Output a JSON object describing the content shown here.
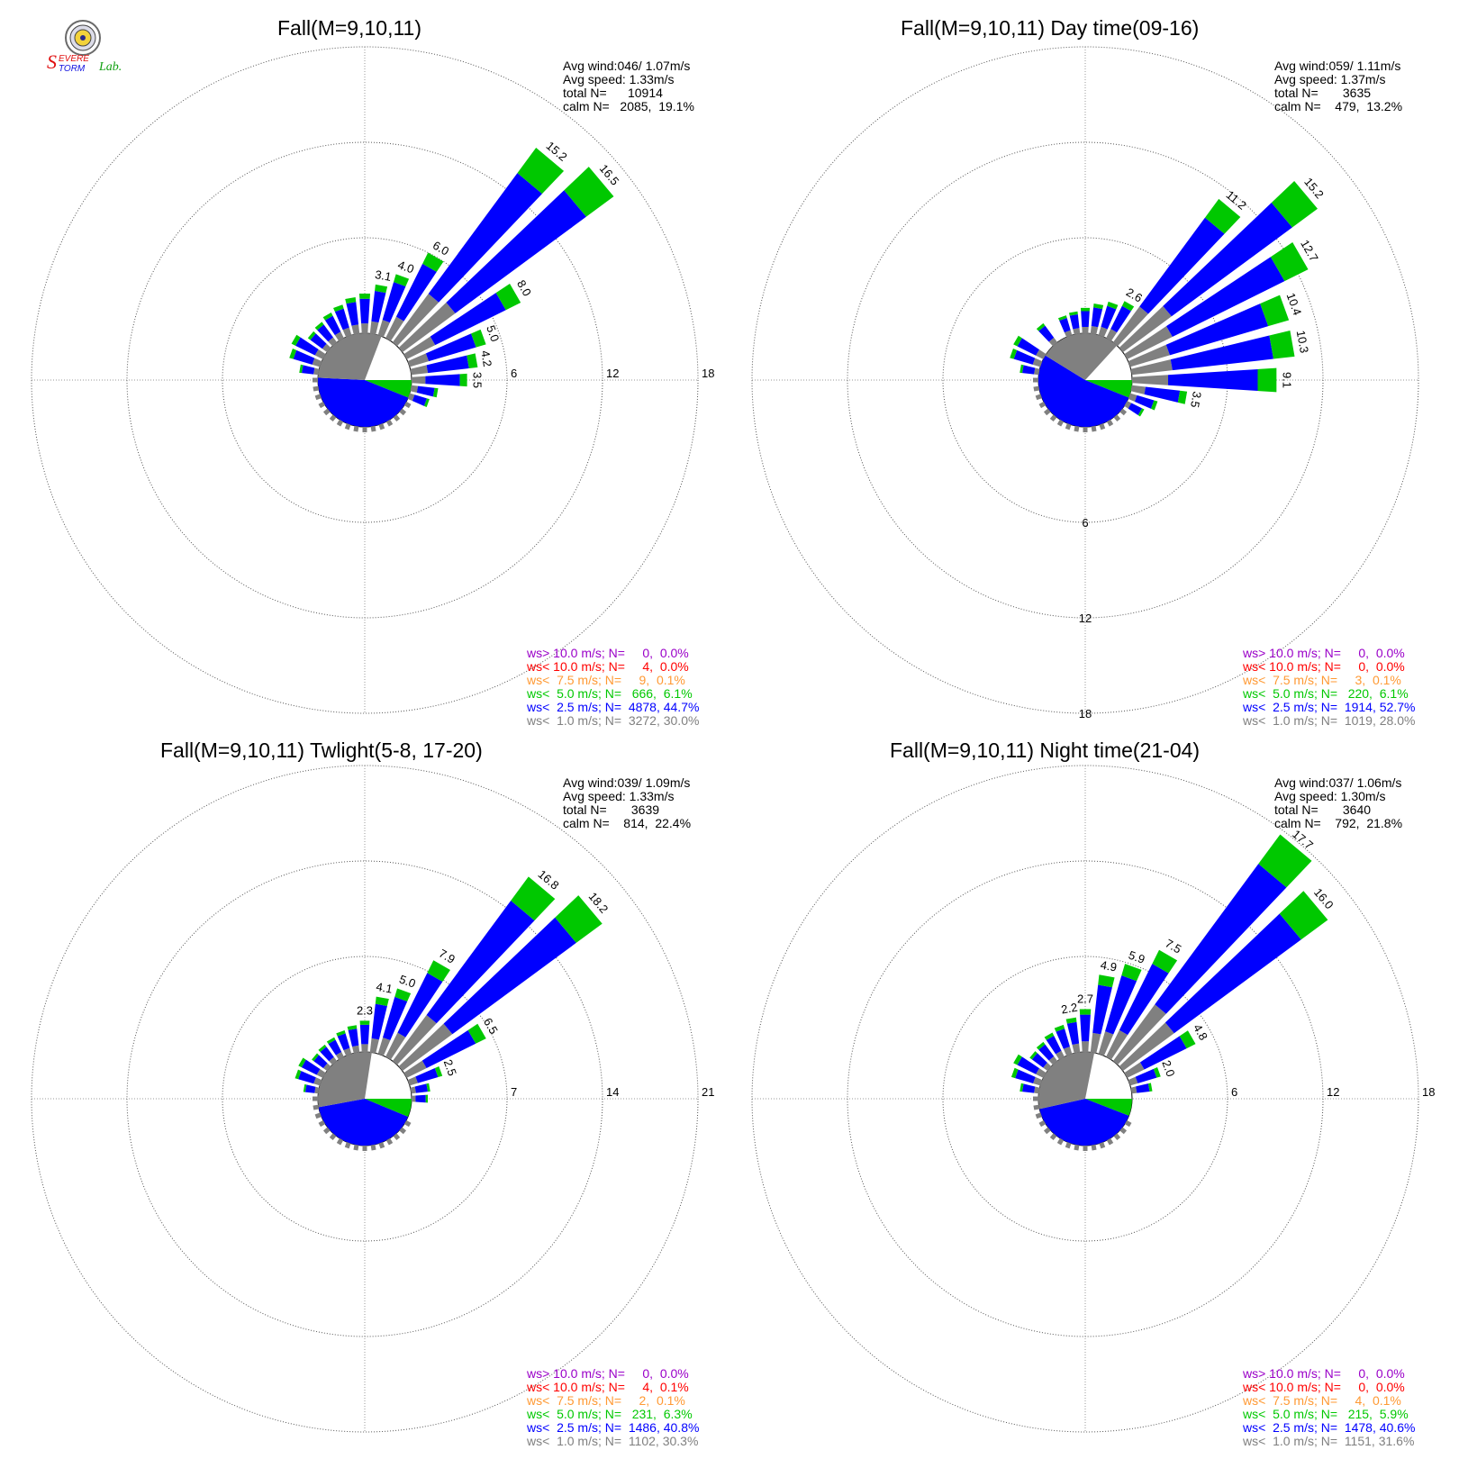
{
  "logo": {
    "text_s": "S",
    "text_evere": "EVERE",
    "text_torm": "TORM",
    "text_lab": "Lab.",
    "colors": {
      "s": "#e01010",
      "evere": "#e01010",
      "torm": "#1010e0",
      "lab": "#10a010"
    }
  },
  "colors": {
    "gt10": "#9a00c8",
    "lt10": "#ff0000",
    "lt7_5": "#ff9933",
    "lt5": "#00c800",
    "lt2_5": "#0000ff",
    "lt1": "#808080",
    "grid": "#999999"
  },
  "chart_data": [
    {
      "type": "windrose",
      "title": "Fall(M=9,10,11)",
      "rings": [
        "6",
        "12",
        "18"
      ],
      "rmax": 18,
      "stats": [
        "Avg wind:046/ 1.07m/s",
        "Avg speed: 1.33m/s",
        "total N=      10914",
        "calm N=   2085,  19.1%"
      ],
      "legend": [
        "ws> 10.0 m/s; N=     0,  0.0%",
        "ws< 10.0 m/s; N=     4,  0.0%",
        "ws<  7.5 m/s; N=     9,  0.1%",
        "ws<  5.0 m/s; N=   666,  6.1%",
        "ws<  2.5 m/s; N=  4878, 44.7%",
        "ws<  1.0 m/s; N=  3272, 30.0%"
      ],
      "calm_pie": [
        {
          "color": "gray",
          "percent": 30.0
        },
        {
          "color": "blue",
          "percent": 44.7
        },
        {
          "color": "green",
          "percent": 6.1
        }
      ],
      "petals": [
        {
          "dir": 10,
          "total": 3.1,
          "label": "3.1"
        },
        {
          "dir": 20,
          "total": 4.0,
          "label": "4.0"
        },
        {
          "dir": 30,
          "total": 6.0,
          "label": "6.0"
        },
        {
          "dir": 40,
          "total": 15.2,
          "label": "15.2"
        },
        {
          "dir": 50,
          "total": 16.5,
          "label": "16.5"
        },
        {
          "dir": 60,
          "total": 8.0,
          "label": "8.0"
        },
        {
          "dir": 70,
          "total": 5.0,
          "label": "5.0"
        },
        {
          "dir": 80,
          "total": 4.2,
          "label": "4.2"
        },
        {
          "dir": 90,
          "total": 3.5,
          "label": "3.5"
        },
        {
          "dir": 100,
          "total": 1.7
        },
        {
          "dir": 110,
          "total": 1.3
        },
        {
          "dir": 0,
          "total": 2.5
        },
        {
          "dir": 350,
          "total": 2.3
        },
        {
          "dir": 340,
          "total": 2.0
        },
        {
          "dir": 330,
          "total": 1.8
        },
        {
          "dir": 320,
          "total": 1.6
        },
        {
          "dir": 310,
          "total": 1.5
        },
        {
          "dir": 300,
          "total": 2.2
        },
        {
          "dir": 290,
          "total": 2.0
        },
        {
          "dir": 280,
          "total": 1.2
        }
      ]
    },
    {
      "type": "windrose",
      "title": "Fall(M=9,10,11) Day time(09-16)",
      "rings": [
        "6",
        "12",
        "18"
      ],
      "rmax": 18,
      "ring_label_direction": "south",
      "stats": [
        "Avg wind:059/ 1.11m/s",
        "Avg speed: 1.37m/s",
        "total N=       3635",
        "calm N=    479,  13.2%"
      ],
      "legend": [
        "ws> 10.0 m/s; N=     0,  0.0%",
        "ws< 10.0 m/s; N=     0,  0.0%",
        "ws<  7.5 m/s; N=     3,  0.1%",
        "ws<  5.0 m/s; N=   220,  6.1%",
        "ws<  2.5 m/s; N=  1914, 52.7%",
        "ws<  1.0 m/s; N=  1019, 28.0%"
      ],
      "calm_pie": [
        {
          "color": "gray",
          "percent": 28.0
        },
        {
          "color": "blue",
          "percent": 52.7
        },
        {
          "color": "green",
          "percent": 6.1
        }
      ],
      "petals": [
        {
          "dir": 30,
          "total": 2.6,
          "label": "2.6"
        },
        {
          "dir": 40,
          "total": 11.2,
          "label": "11.2"
        },
        {
          "dir": 50,
          "total": 15.2,
          "label": "15.2"
        },
        {
          "dir": 60,
          "total": 12.7,
          "label": "12.7"
        },
        {
          "dir": 70,
          "total": 10.4,
          "label": "10.4"
        },
        {
          "dir": 80,
          "total": 10.3,
          "label": "10.3"
        },
        {
          "dir": 90,
          "total": 9.1,
          "label": "9.1"
        },
        {
          "dir": 100,
          "total": 3.5,
          "label": "3.5"
        },
        {
          "dir": 110,
          "total": 1.8
        },
        {
          "dir": 120,
          "total": 1.2
        },
        {
          "dir": 0,
          "total": 1.6
        },
        {
          "dir": 10,
          "total": 1.9
        },
        {
          "dir": 20,
          "total": 2.2
        },
        {
          "dir": 350,
          "total": 1.4
        },
        {
          "dir": 340,
          "total": 1.3
        },
        {
          "dir": 320,
          "total": 1.5
        },
        {
          "dir": 300,
          "total": 2.1
        },
        {
          "dir": 290,
          "total": 2.0
        },
        {
          "dir": 280,
          "total": 1.2
        }
      ]
    },
    {
      "type": "windrose",
      "title": "Fall(M=9,10,11) Twlight(5-8, 17-20)",
      "rings": [
        "7",
        "14",
        "21"
      ],
      "rmax": 21,
      "stats": [
        "Avg wind:039/ 1.09m/s",
        "Avg speed: 1.33m/s",
        "total N=       3639",
        "calm N=    814,  22.4%"
      ],
      "legend": [
        "ws> 10.0 m/s; N=     0,  0.0%",
        "ws< 10.0 m/s; N=     4,  0.1%",
        "ws<  7.5 m/s; N=     2,  0.1%",
        "ws<  5.0 m/s; N=   231,  6.3%",
        "ws<  2.5 m/s; N=  1486, 40.8%",
        "ws<  1.0 m/s; N=  1102, 30.3%"
      ],
      "calm_pie": [
        {
          "color": "gray",
          "percent": 30.3
        },
        {
          "color": "blue",
          "percent": 40.8
        },
        {
          "color": "green",
          "percent": 6.3
        }
      ],
      "petals": [
        {
          "dir": 0,
          "total": 2.3,
          "label": "2.3"
        },
        {
          "dir": 10,
          "total": 4.1,
          "label": "4.1"
        },
        {
          "dir": 20,
          "total": 5.0,
          "label": "5.0"
        },
        {
          "dir": 30,
          "total": 7.9,
          "label": "7.9"
        },
        {
          "dir": 40,
          "total": 16.8,
          "label": "16.8"
        },
        {
          "dir": 50,
          "total": 18.2,
          "label": "18.2"
        },
        {
          "dir": 60,
          "total": 6.5,
          "label": "6.5"
        },
        {
          "dir": 70,
          "total": 2.5,
          "label": "2.5"
        },
        {
          "dir": 80,
          "total": 1.4
        },
        {
          "dir": 90,
          "total": 1.2
        },
        {
          "dir": 350,
          "total": 2.0
        },
        {
          "dir": 340,
          "total": 1.8
        },
        {
          "dir": 330,
          "total": 1.6
        },
        {
          "dir": 320,
          "total": 1.5
        },
        {
          "dir": 310,
          "total": 1.4
        },
        {
          "dir": 300,
          "total": 2.0
        },
        {
          "dir": 290,
          "total": 1.9
        },
        {
          "dir": 280,
          "total": 1.1
        }
      ]
    },
    {
      "type": "windrose",
      "title": "Fall(M=9,10,11) Night time(21-04)",
      "rings": [
        "6",
        "12",
        "18"
      ],
      "rmax": 18,
      "stats": [
        "Avg wind:037/ 1.06m/s",
        "Avg speed: 1.30m/s",
        "total N=       3640",
        "calm N=    792,  21.8%"
      ],
      "legend": [
        "ws> 10.0 m/s; N=     0,  0.0%",
        "ws< 10.0 m/s; N=     0,  0.0%",
        "ws<  7.5 m/s; N=     4,  0.1%",
        "ws<  5.0 m/s; N=   215,  5.9%",
        "ws<  2.5 m/s; N=  1478, 40.6%",
        "ws<  1.0 m/s; N=  1151, 31.6%"
      ],
      "calm_pie": [
        {
          "color": "gray",
          "percent": 31.6
        },
        {
          "color": "blue",
          "percent": 40.6
        },
        {
          "color": "green",
          "percent": 5.9
        }
      ],
      "petals": [
        {
          "dir": 350,
          "total": 2.2,
          "label": "2.2"
        },
        {
          "dir": 0,
          "total": 2.7,
          "label": "2.7"
        },
        {
          "dir": 10,
          "total": 4.9,
          "label": "4.9"
        },
        {
          "dir": 20,
          "total": 5.9,
          "label": "5.9"
        },
        {
          "dir": 30,
          "total": 7.5,
          "label": "7.5"
        },
        {
          "dir": 40,
          "total": 17.7,
          "label": "17.7"
        },
        {
          "dir": 50,
          "total": 16.0,
          "label": "16.0"
        },
        {
          "dir": 60,
          "total": 4.8,
          "label": "4.8"
        },
        {
          "dir": 70,
          "total": 2.0,
          "label": "2.0"
        },
        {
          "dir": 80,
          "total": 1.3
        },
        {
          "dir": 340,
          "total": 1.9
        },
        {
          "dir": 330,
          "total": 1.7
        },
        {
          "dir": 320,
          "total": 1.5
        },
        {
          "dir": 310,
          "total": 1.4
        },
        {
          "dir": 300,
          "total": 2.1
        },
        {
          "dir": 290,
          "total": 1.9
        },
        {
          "dir": 280,
          "total": 1.2
        }
      ]
    }
  ]
}
